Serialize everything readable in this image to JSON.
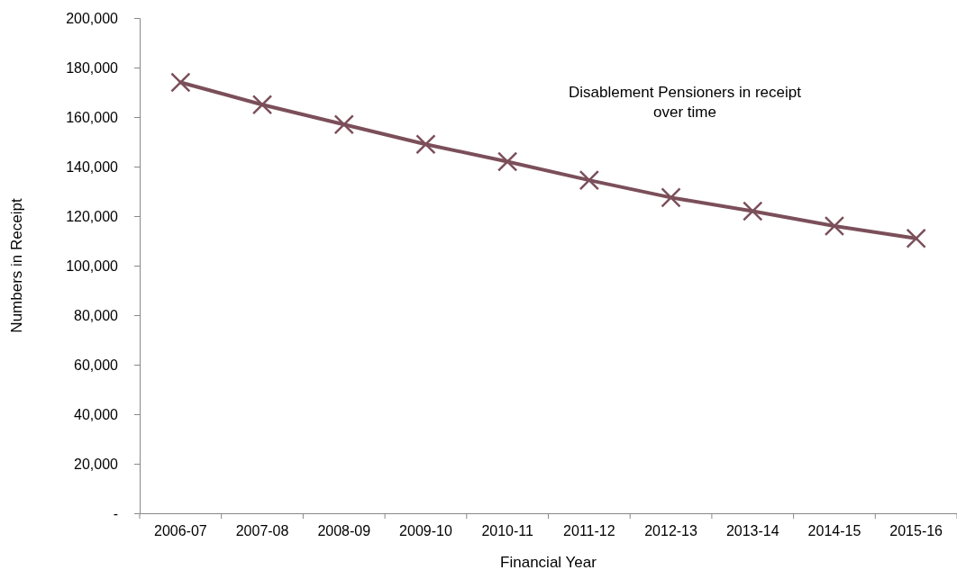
{
  "chart_data": {
    "type": "line",
    "xlabel": "Financial Year",
    "ylabel": "Numbers in Receipt",
    "categories": [
      "2006-07",
      "2007-08",
      "2008-09",
      "2009-10",
      "2010-11",
      "2011-12",
      "2012-13",
      "2013-14",
      "2014-15",
      "2015-16"
    ],
    "series": [
      {
        "color": "#7b4f5a",
        "values": [
          174000,
          165000,
          157000,
          149000,
          142000,
          134500,
          127500,
          122000,
          116000,
          111000
        ]
      }
    ],
    "ylim": [
      0,
      200000
    ],
    "yticks": [
      {
        "value": 0,
        "label": "-"
      },
      {
        "value": 20000,
        "label": "20,000"
      },
      {
        "value": 40000,
        "label": "40,000"
      },
      {
        "value": 60000,
        "label": "60,000"
      },
      {
        "value": 80000,
        "label": "80,000"
      },
      {
        "value": 100000,
        "label": "100,000"
      },
      {
        "value": 120000,
        "label": "120,000"
      },
      {
        "value": 140000,
        "label": "140,000"
      },
      {
        "value": 160000,
        "label": "160,000"
      },
      {
        "value": 180000,
        "label": "180,000"
      },
      {
        "value": 200000,
        "label": "200,000"
      }
    ],
    "annotations": [
      "Disablement Pensioners in receipt over time"
    ],
    "grid": false,
    "marker": "cross",
    "line_style": "solid"
  }
}
